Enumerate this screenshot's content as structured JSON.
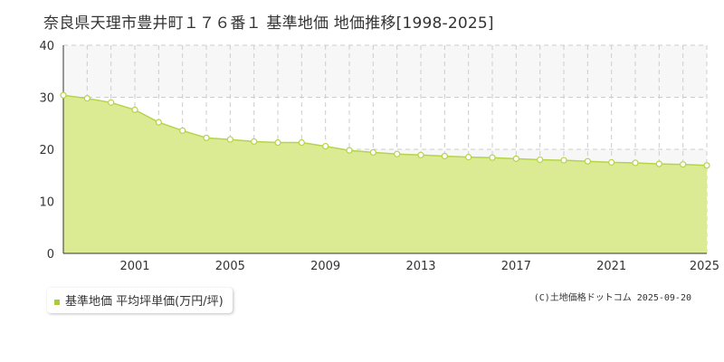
{
  "title": "奈良県天理市豊井町１７６番１ 基準地価 地価推移[1998-2025]",
  "legend_label": "基準地価 平均坪単価(万円/坪)",
  "credit": "(C)土地価格ドットコム 2025-09-20",
  "colors": {
    "area_fill": "#dbeb93",
    "line": "#b5d44a",
    "point_stroke": "#b5d44a",
    "grid": "#cccccc",
    "band": "#f7f7f7",
    "legend_marker": "#a8cc3a"
  },
  "chart_data": {
    "type": "area",
    "x": [
      1998,
      1999,
      2000,
      2001,
      2002,
      2003,
      2004,
      2005,
      2006,
      2007,
      2008,
      2009,
      2010,
      2011,
      2012,
      2013,
      2014,
      2015,
      2016,
      2017,
      2018,
      2019,
      2020,
      2021,
      2022,
      2023,
      2024,
      2025
    ],
    "series": [
      {
        "name": "基準地価 平均坪単価(万円/坪)",
        "values": [
          30.4,
          29.8,
          29.0,
          27.6,
          25.2,
          23.6,
          22.2,
          21.9,
          21.5,
          21.3,
          21.3,
          20.6,
          19.8,
          19.4,
          19.1,
          18.9,
          18.7,
          18.5,
          18.4,
          18.2,
          18.0,
          17.9,
          17.7,
          17.5,
          17.4,
          17.2,
          17.1,
          16.9
        ]
      }
    ],
    "xticks": [
      "2001",
      "2005",
      "2009",
      "2013",
      "2017",
      "2021",
      "2025"
    ],
    "yticks": [
      "0",
      "10",
      "20",
      "30",
      "40"
    ],
    "xlim": [
      1998,
      2025
    ],
    "ylim": [
      0,
      40
    ],
    "grid": true
  }
}
